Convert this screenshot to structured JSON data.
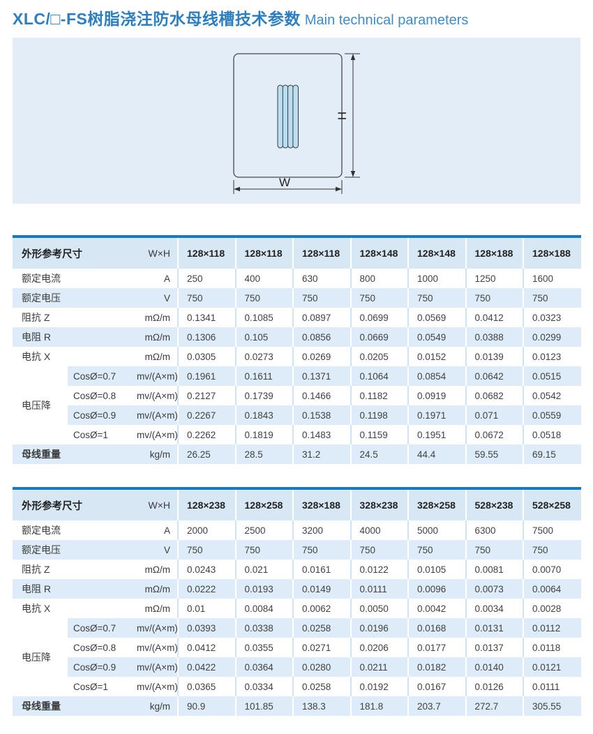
{
  "page": {
    "title_zh": "XLC/□-FS树脂浇注防水母线槽技术参数",
    "title_en": "Main technical parameters"
  },
  "colors": {
    "accent": "#177abf",
    "title_blue": "#2b7fc0",
    "panel_bg": "#e2edf7",
    "header_bg": "#d7e7f4",
    "stripe_bg": "#ddecf8"
  },
  "diagram": {
    "height_label": "H",
    "width_label": "W"
  },
  "tables": [
    {
      "header": {
        "label": "外形参考尺寸",
        "unit": "W×H",
        "columns": [
          "128×118",
          "128×118",
          "128×118",
          "128×148",
          "128×148",
          "128×188",
          "128×188"
        ]
      },
      "rows": [
        {
          "label": "额定电流",
          "unit": "A",
          "values": [
            "250",
            "400",
            "630",
            "800",
            "1000",
            "1250",
            "1600"
          ]
        },
        {
          "label": "额定电压",
          "unit": "V",
          "values": [
            "750",
            "750",
            "750",
            "750",
            "750",
            "750",
            "750"
          ]
        },
        {
          "label": "阻抗 Z",
          "unit": "mΩ/m",
          "values": [
            "0.1341",
            "0.1085",
            "0.0897",
            "0.0699",
            "0.0569",
            "0.0412",
            "0.0323"
          ]
        },
        {
          "label": "电阻 R",
          "unit": "mΩ/m",
          "values": [
            "0.1306",
            "0.105",
            "0.0856",
            "0.0669",
            "0.0549",
            "0.0388",
            "0.0299"
          ]
        },
        {
          "label": "电抗 X",
          "unit": "mΩ/m",
          "values": [
            "0.0305",
            "0.0273",
            "0.0269",
            "0.0205",
            "0.0152",
            "0.0139",
            "0.0123"
          ]
        },
        {
          "group": "电压降",
          "group_span": 4,
          "sub": "CosØ=0.7",
          "unit": "mv/(A×m)",
          "values": [
            "0.1961",
            "0.1611",
            "0.1371",
            "0.1064",
            "0.0854",
            "0.0642",
            "0.0515"
          ]
        },
        {
          "sub": "CosØ=0.8",
          "unit": "mv/(A×m)",
          "values": [
            "0.2127",
            "0.1739",
            "0.1466",
            "0.1182",
            "0.0919",
            "0.0682",
            "0.0542"
          ]
        },
        {
          "sub": "CosØ=0.9",
          "unit": "mv/(A×m)",
          "values": [
            "0.2267",
            "0.1843",
            "0.1538",
            "0.1198",
            "0.1971",
            "0.071",
            "0.0559"
          ]
        },
        {
          "sub": "CosØ=1",
          "unit": "mv/(A×m)",
          "values": [
            "0.2262",
            "0.1819",
            "0.1483",
            "0.1159",
            "0.1951",
            "0.0672",
            "0.0518"
          ]
        },
        {
          "label": "母线重量",
          "strong": true,
          "unit": "kg/m",
          "values": [
            "26.25",
            "28.5",
            "31.2",
            "24.5",
            "44.4",
            "59.55",
            "69.15"
          ]
        }
      ]
    },
    {
      "header": {
        "label": "外形参考尺寸",
        "unit": "W×H",
        "columns": [
          "128×238",
          "128×258",
          "328×188",
          "328×238",
          "328×258",
          "528×238",
          "528×258"
        ]
      },
      "rows": [
        {
          "label": "额定电流",
          "unit": "A",
          "values": [
            "2000",
            "2500",
            "3200",
            "4000",
            "5000",
            "6300",
            "7500"
          ]
        },
        {
          "label": "额定电压",
          "unit": "V",
          "values": [
            "750",
            "750",
            "750",
            "750",
            "750",
            "750",
            "750"
          ]
        },
        {
          "label": "阻抗 Z",
          "unit": "mΩ/m",
          "values": [
            "0.0243",
            "0.021",
            "0.0161",
            "0.0122",
            "0.0105",
            "0.0081",
            "0.0070"
          ]
        },
        {
          "label": "电阻 R",
          "unit": "mΩ/m",
          "values": [
            "0.0222",
            "0.0193",
            "0.0149",
            "0.0111",
            "0.0096",
            "0.0073",
            "0.0064"
          ]
        },
        {
          "label": "电抗 X",
          "unit": "mΩ/m",
          "values": [
            "0.01",
            "0.0084",
            "0.0062",
            "0.0050",
            "0.0042",
            "0.0034",
            "0.0028"
          ]
        },
        {
          "group": "电压降",
          "group_span": 4,
          "sub": "CosØ=0.7",
          "unit": "mv/(A×m)",
          "values": [
            "0.0393",
            "0.0338",
            "0.0258",
            "0.0196",
            "0.0168",
            "0.0131",
            "0.0112"
          ]
        },
        {
          "sub": "CosØ=0.8",
          "unit": "mv/(A×m)",
          "values": [
            "0.0412",
            "0.0355",
            "0.0271",
            "0.0206",
            "0.0177",
            "0.0137",
            "0.0118"
          ]
        },
        {
          "sub": "CosØ=0.9",
          "unit": "mv/(A×m)",
          "values": [
            "0.0422",
            "0.0364",
            "0.0280",
            "0.0211",
            "0.0182",
            "0.0140",
            "0.0121"
          ]
        },
        {
          "sub": "CosØ=1",
          "unit": "mv/(A×m)",
          "values": [
            "0.0365",
            "0.0334",
            "0.0258",
            "0.0192",
            "0.0167",
            "0.0126",
            "0.0111"
          ]
        },
        {
          "label": "母线重量",
          "strong": true,
          "unit": "kg/m",
          "values": [
            "90.9",
            "101.85",
            "138.3",
            "181.8",
            "203.7",
            "272.7",
            "305.55"
          ]
        }
      ]
    }
  ]
}
